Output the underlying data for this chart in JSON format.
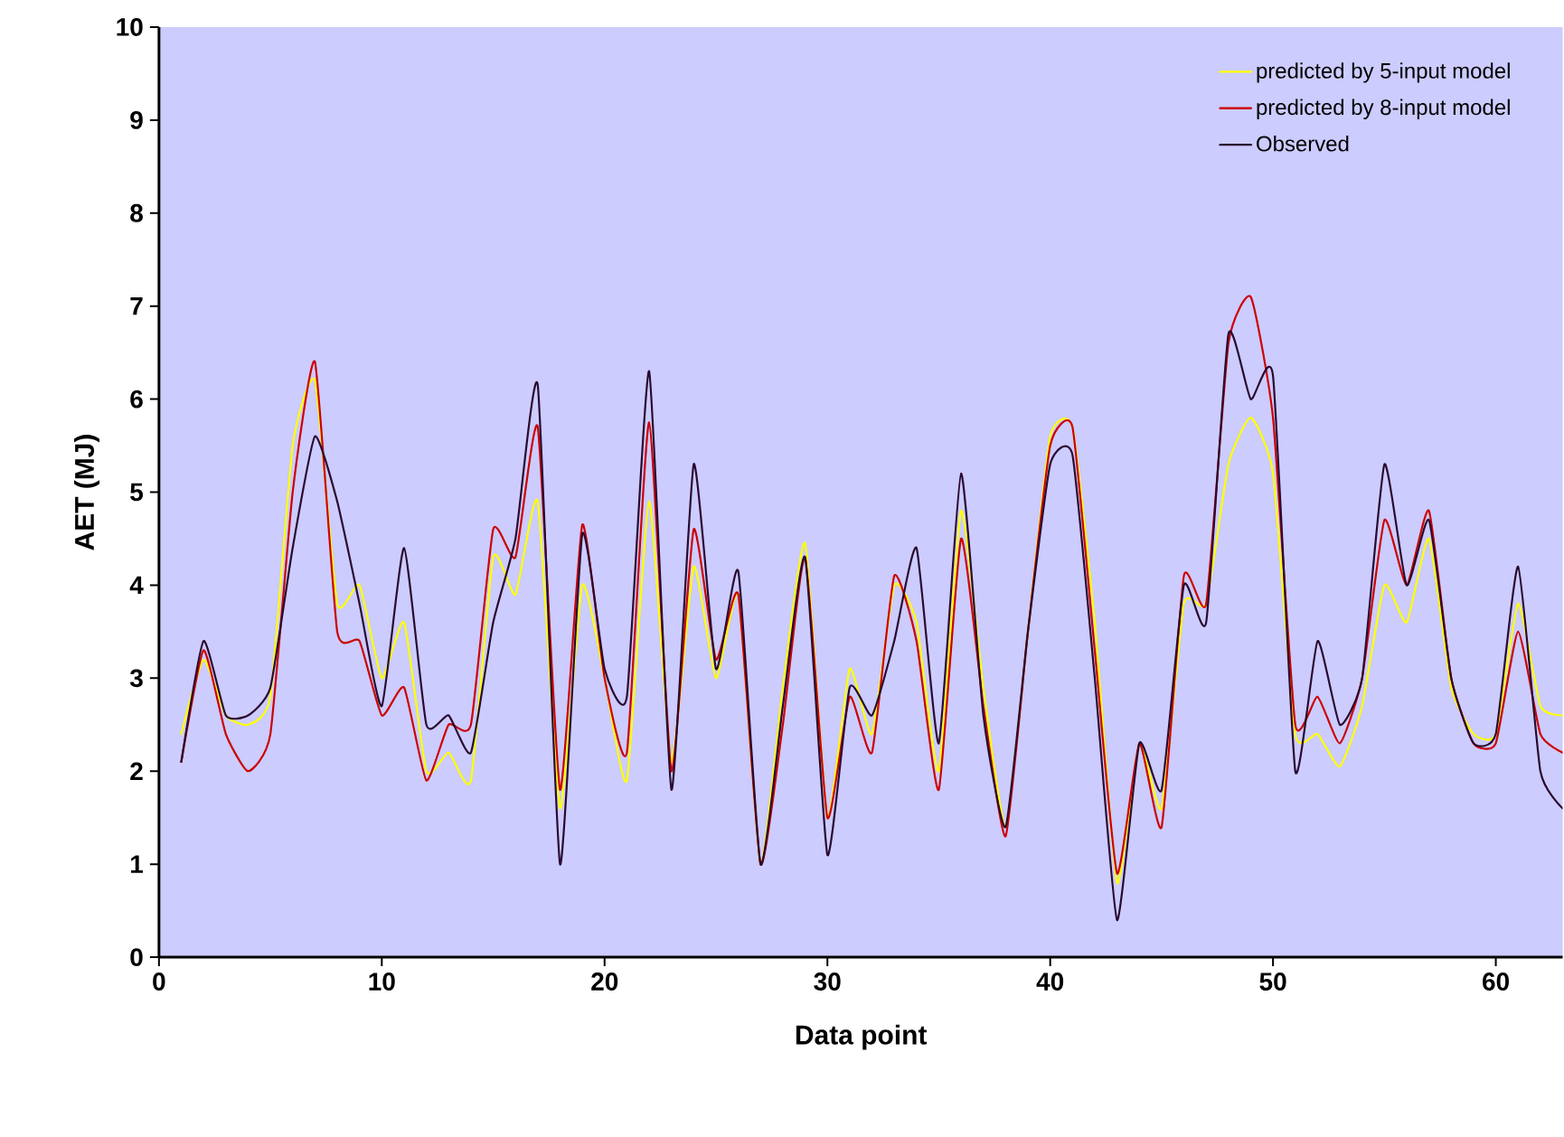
{
  "chart_data": {
    "type": "line",
    "xlabel": "Data point",
    "ylabel": "AET (MJ)",
    "x": [
      1,
      2,
      3,
      4,
      5,
      6,
      7,
      8,
      9,
      10,
      11,
      12,
      13,
      14,
      15,
      16,
      17,
      18,
      19,
      20,
      21,
      22,
      23,
      24,
      25,
      26,
      27,
      28,
      29,
      30,
      31,
      32,
      33,
      34,
      35,
      36,
      37,
      38,
      39,
      40,
      41,
      42,
      43,
      44,
      45,
      46,
      47,
      48,
      49,
      50,
      51,
      52,
      53,
      54,
      55,
      56,
      57,
      58,
      59,
      60,
      61,
      62,
      63
    ],
    "series": [
      {
        "name": "predicted by 5-input model",
        "color": "#ffff00",
        "values": [
          2.4,
          3.2,
          2.6,
          2.5,
          2.8,
          5.5,
          6.2,
          3.8,
          4.0,
          3.0,
          3.6,
          2.0,
          2.2,
          1.9,
          4.3,
          3.9,
          4.9,
          1.6,
          4.0,
          3.0,
          1.9,
          4.9,
          2.1,
          4.2,
          3.0,
          3.9,
          1.0,
          2.9,
          4.45,
          1.5,
          3.1,
          2.4,
          4.0,
          3.6,
          2.0,
          4.8,
          2.9,
          1.4,
          3.5,
          5.6,
          5.7,
          3.6,
          0.8,
          2.3,
          1.6,
          3.8,
          3.8,
          5.3,
          5.8,
          5.2,
          2.4,
          2.4,
          2.05,
          2.7,
          4.0,
          3.6,
          4.5,
          2.9,
          2.4,
          2.4,
          3.8,
          2.7,
          2.6
        ]
      },
      {
        "name": "predicted by 8-input model",
        "color": "#cc0000",
        "values": [
          2.1,
          3.3,
          2.4,
          2.0,
          2.4,
          5.0,
          6.4,
          3.5,
          3.4,
          2.6,
          2.9,
          1.9,
          2.5,
          2.5,
          4.6,
          4.3,
          5.7,
          1.8,
          4.65,
          3.0,
          2.2,
          5.75,
          2.0,
          4.6,
          3.2,
          3.9,
          1.0,
          2.5,
          4.3,
          1.5,
          2.8,
          2.2,
          4.1,
          3.4,
          1.8,
          4.5,
          2.7,
          1.3,
          3.5,
          5.5,
          5.7,
          3.3,
          0.9,
          2.3,
          1.4,
          4.1,
          3.8,
          6.6,
          7.1,
          5.8,
          2.5,
          2.8,
          2.3,
          3.0,
          4.7,
          4.0,
          4.8,
          3.0,
          2.3,
          2.3,
          3.5,
          2.4,
          2.2
        ]
      },
      {
        "name": "Observed",
        "color": "#2a0a30",
        "values": [
          2.1,
          3.4,
          2.6,
          2.6,
          2.9,
          4.4,
          5.6,
          4.9,
          3.8,
          2.7,
          4.4,
          2.5,
          2.6,
          2.2,
          3.6,
          4.5,
          6.15,
          1.0,
          4.55,
          3.1,
          2.8,
          6.3,
          1.8,
          5.3,
          3.1,
          4.15,
          1.0,
          2.7,
          4.3,
          1.1,
          2.9,
          2.6,
          3.4,
          4.4,
          2.3,
          5.2,
          2.6,
          1.4,
          3.5,
          5.3,
          5.4,
          3.0,
          0.4,
          2.3,
          1.8,
          4.0,
          3.6,
          6.7,
          6.0,
          6.25,
          2.0,
          3.4,
          2.5,
          3.0,
          5.3,
          4.0,
          4.7,
          3.0,
          2.3,
          2.4,
          4.2,
          2.0,
          1.6
        ]
      }
    ],
    "xlim": [
      0,
      63
    ],
    "xticks": [
      0,
      10,
      20,
      30,
      40,
      50,
      60
    ],
    "ylim": [
      0,
      10
    ],
    "yticks": [
      0,
      1,
      2,
      3,
      4,
      5,
      6,
      7,
      8,
      9,
      10
    ],
    "legend": "top right",
    "marker": "none",
    "line_style": "solid",
    "grid": false
  }
}
